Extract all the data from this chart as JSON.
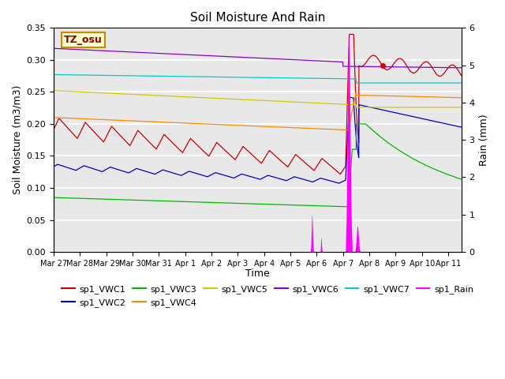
{
  "title": "Soil Moisture And Rain",
  "xlabel": "Time",
  "ylabel_left": "Soil Moisture (m3/m3)",
  "ylabel_right": "Rain (mm)",
  "annotation": "TZ_osu",
  "ylim_left": [
    0.0,
    0.35
  ],
  "ylim_right": [
    0.0,
    6.0
  ],
  "bg_color": "#e8e8e8",
  "grid_color": "white",
  "series": {
    "VWC1": {
      "color": "#cc0000",
      "label": "sp1_VWC1"
    },
    "VWC2": {
      "color": "#0000cc",
      "label": "sp1_VWC2"
    },
    "VWC3": {
      "color": "#00bb00",
      "label": "sp1_VWC3"
    },
    "VWC4": {
      "color": "#ff8800",
      "label": "sp1_VWC4"
    },
    "VWC5": {
      "color": "#cccc00",
      "label": "sp1_VWC5"
    },
    "VWC6": {
      "color": "#8800cc",
      "label": "sp1_VWC6"
    },
    "VWC7": {
      "color": "#00cccc",
      "label": "sp1_VWC7"
    },
    "Rain": {
      "color": "#ff00ff",
      "label": "sp1_Rain"
    }
  },
  "tick_labels": [
    "Mar 27",
    "Mar 28",
    "Mar 29",
    "Mar 30",
    "Mar 31",
    "Apr 1",
    "Apr 2",
    "Apr 3",
    "Apr 4",
    "Apr 5",
    "Apr 6",
    "Apr 7",
    "Apr 8",
    "Apr 9",
    "Apr 10",
    "Apr 11"
  ]
}
